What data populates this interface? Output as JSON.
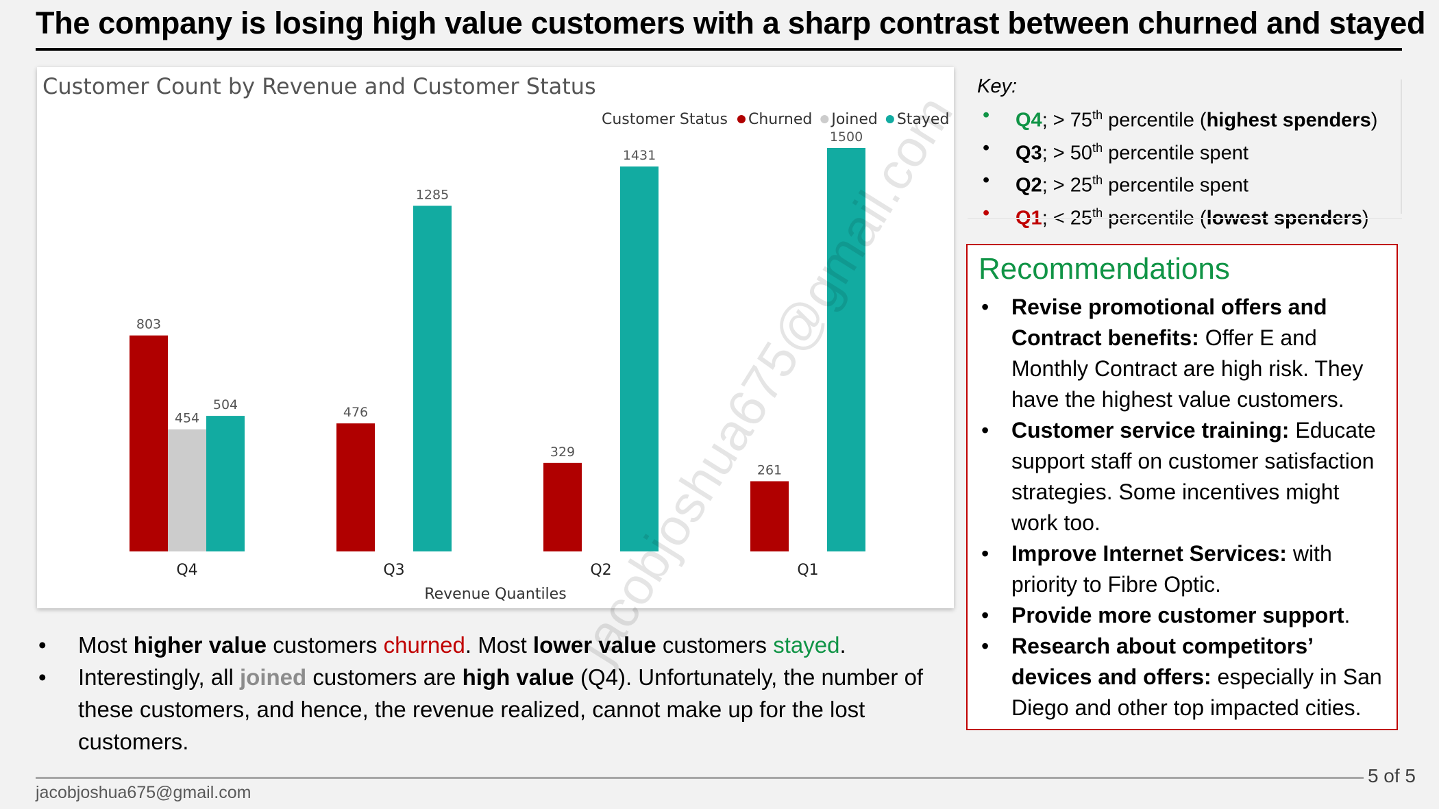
{
  "slide": {
    "title": "The company is losing high value customers with a sharp contrast between churned and stayed",
    "footer_email": "jacobjoshua675@gmail.com",
    "page_number": "5 of 5",
    "watermark": "jacobjoshua675@gmail.com"
  },
  "chart_data": {
    "type": "bar",
    "title": "Customer Count by Revenue and Customer Status",
    "xlabel": "Revenue Quantiles",
    "ylabel": "",
    "legend_title": "Customer Status",
    "legend_position": "top-right",
    "categories": [
      "Q4",
      "Q3",
      "Q2",
      "Q1"
    ],
    "series": [
      {
        "name": "Churned",
        "color": "#b00000",
        "values": [
          803,
          476,
          329,
          261
        ]
      },
      {
        "name": "Joined",
        "color": "#cccccc",
        "values": [
          454,
          null,
          null,
          null
        ]
      },
      {
        "name": "Stayed",
        "color": "#12aba1",
        "values": [
          504,
          1285,
          1431,
          1500
        ]
      }
    ],
    "ylim": [
      0,
      1500
    ],
    "grid": false
  },
  "key": {
    "title": "Key:",
    "items": [
      {
        "bullet_color": "#109446",
        "label": "Q4",
        "label_color": "#109446",
        "text1": "; > 75",
        "sup": "th",
        "text2": " percentile (",
        "bold": "highest spenders",
        "text3": ")"
      },
      {
        "bullet_color": "#000000",
        "label": "Q3",
        "label_color": "#000000",
        "text1": "; > 50",
        "sup": "th",
        "text2": " percentile spent",
        "bold": "",
        "text3": ""
      },
      {
        "bullet_color": "#000000",
        "label": "Q2",
        "label_color": "#000000",
        "text1": "; > 25",
        "sup": "th",
        "text2": " percentile spent",
        "bold": "",
        "text3": ""
      },
      {
        "bullet_color": "#c00000",
        "label": "Q1",
        "label_color": "#c00000",
        "text1": "; < 25",
        "sup": "th",
        "text2": " percentile (",
        "bold": "lowest spenders",
        "text3": ")"
      }
    ]
  },
  "recommendations": {
    "title": "Recommendations",
    "items": [
      {
        "bold": "Revise promotional offers and Contract benefits:",
        "text": " Offer E and Monthly Contract are high risk. They have the highest value customers."
      },
      {
        "bold": "Customer service training:",
        "text": " Educate support staff on customer satisfaction strategies. Some incentives might work too."
      },
      {
        "bold": "Improve Internet Services:",
        "text": " with priority to Fibre Optic."
      },
      {
        "bold": "Provide more customer support",
        "text": "."
      },
      {
        "bold": "Research about competitors’ devices and offers:",
        "text": " especially in San Diego and other top impacted cities."
      }
    ]
  },
  "notes": {
    "n1": {
      "a": "Most ",
      "b": "higher value",
      "c": " customers ",
      "d": "churned",
      "e": ". Most ",
      "f": "lower value",
      "g": " customers ",
      "h": "stayed",
      "i": "."
    },
    "n2": {
      "a": "Interestingly, all ",
      "b": "joined",
      "c": " customers are ",
      "d": "high value",
      "e": " (Q4). Unfortunately, the number of these customers, and hence, the revenue realized, cannot make up for the lost customers."
    }
  },
  "bullet": "•"
}
